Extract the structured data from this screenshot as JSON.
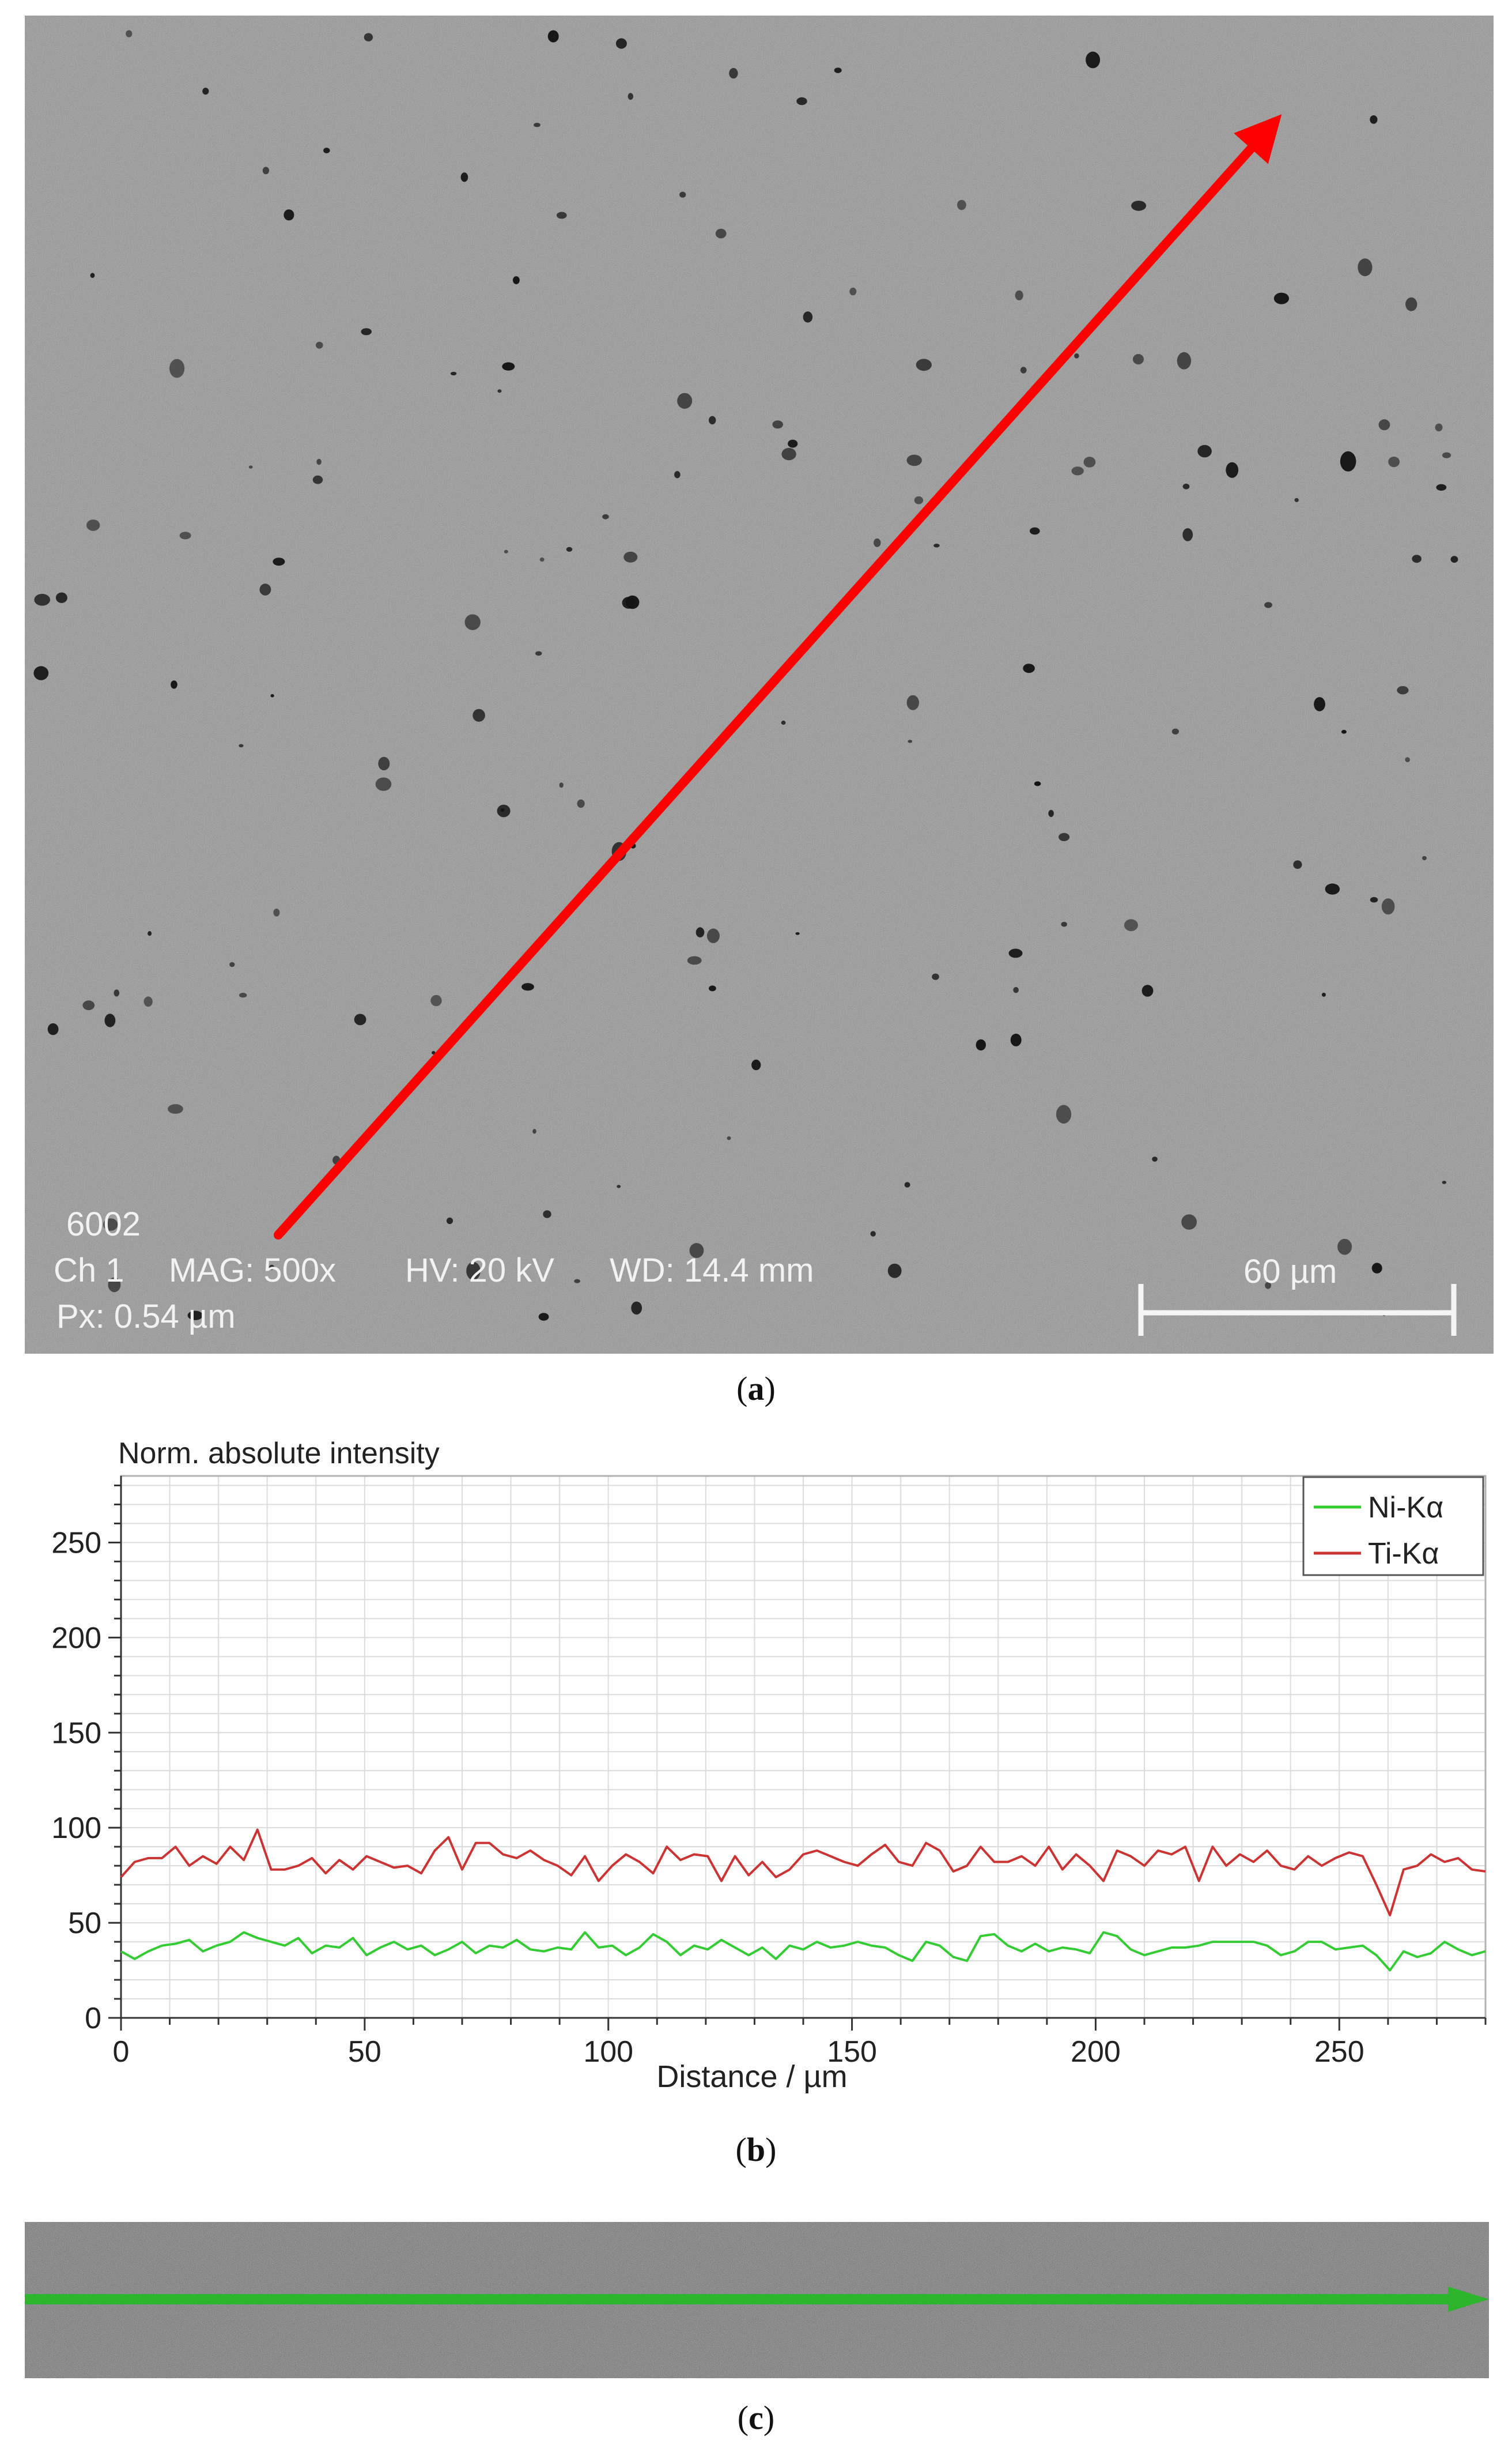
{
  "panel_a": {
    "id_label": "6002",
    "channel": "Ch 1",
    "mag": "MAG: 500x",
    "hv": "HV: 20 kV",
    "wd": "WD: 14.4 mm",
    "px": "Px: 0.54 µm",
    "scalebar": "60 µm",
    "arrow_color": "#ff0000",
    "caption_letter": "a"
  },
  "panel_b": {
    "caption_letter": "b"
  },
  "panel_c": {
    "arrow_color": "#2db52d",
    "caption_letter": "c"
  },
  "chart_data": {
    "type": "line",
    "title": "Norm. absolute intensity",
    "xlabel": "Distance / µm",
    "ylabel": "",
    "xlim": [
      0,
      280
    ],
    "ylim": [
      0,
      285
    ],
    "xticks": [
      0,
      50,
      100,
      150,
      200,
      250
    ],
    "yticks": [
      0,
      50,
      100,
      150,
      200,
      250
    ],
    "grid": true,
    "legend_position": "top-right",
    "x": [
      0,
      2.8,
      5.6,
      8.4,
      11.2,
      14,
      16.8,
      19.6,
      22.4,
      25.2,
      28,
      30.8,
      33.6,
      36.4,
      39.2,
      42,
      44.8,
      47.6,
      50.4,
      53.2,
      56,
      58.8,
      61.6,
      64.4,
      67.2,
      70,
      72.8,
      75.6,
      78.4,
      81.2,
      84,
      86.8,
      89.6,
      92.4,
      95.2,
      98,
      100.8,
      103.6,
      106.4,
      109.2,
      112,
      114.8,
      117.6,
      120.4,
      123.2,
      126,
      128.8,
      131.6,
      134.4,
      137.2,
      140,
      142.8,
      145.6,
      148.4,
      151.2,
      154,
      156.8,
      159.6,
      162.4,
      165.2,
      168,
      170.8,
      173.6,
      176.4,
      179.2,
      182,
      184.8,
      187.6,
      190.4,
      193.2,
      196,
      198.8,
      201.6,
      204.4,
      207.2,
      210,
      212.8,
      215.6,
      218.4,
      221.2,
      224,
      226.8,
      229.6,
      232.4,
      235.2,
      238,
      240.8,
      243.6,
      246.4,
      249.2,
      252,
      254.8,
      257.6,
      260.4,
      263.2,
      266,
      268.8,
      271.6,
      274.4,
      277.2,
      280
    ],
    "series": [
      {
        "name": "Ni-Kα",
        "color": "#33cc33",
        "values": [
          35,
          31,
          35,
          38,
          39,
          41,
          35,
          38,
          40,
          45,
          42,
          40,
          38,
          42,
          34,
          38,
          37,
          42,
          33,
          37,
          40,
          36,
          38,
          33,
          36,
          40,
          34,
          38,
          37,
          41,
          36,
          35,
          37,
          36,
          45,
          37,
          38,
          33,
          37,
          44,
          40,
          33,
          38,
          36,
          41,
          37,
          33,
          37,
          31,
          38,
          36,
          40,
          37,
          38,
          40,
          38,
          37,
          33,
          30,
          40,
          38,
          32,
          30,
          43,
          44,
          38,
          35,
          39,
          35,
          37,
          36,
          34,
          45,
          43,
          36,
          33,
          35,
          37,
          37,
          38,
          40,
          40,
          40,
          40,
          38,
          33,
          35,
          40,
          40,
          36,
          37,
          38,
          33,
          25,
          35,
          32,
          34,
          40,
          36,
          33,
          35
        ]
      },
      {
        "name": "Ti-Kα",
        "color": "#cc3333",
        "values": [
          74,
          82,
          84,
          84,
          90,
          80,
          85,
          81,
          90,
          83,
          99,
          78,
          78,
          80,
          84,
          76,
          83,
          78,
          85,
          82,
          79,
          80,
          76,
          88,
          95,
          78,
          92,
          92,
          86,
          84,
          88,
          83,
          80,
          75,
          85,
          72,
          80,
          86,
          82,
          76,
          90,
          83,
          86,
          85,
          72,
          85,
          75,
          82,
          74,
          78,
          86,
          88,
          85,
          82,
          80,
          86,
          91,
          82,
          80,
          92,
          88,
          77,
          80,
          90,
          82,
          82,
          85,
          80,
          90,
          78,
          86,
          80,
          72,
          88,
          85,
          80,
          88,
          86,
          90,
          72,
          90,
          80,
          86,
          82,
          88,
          80,
          78,
          85,
          80,
          84,
          87,
          85,
          70,
          54,
          78,
          80,
          86,
          82,
          84,
          78,
          77
        ]
      }
    ]
  }
}
